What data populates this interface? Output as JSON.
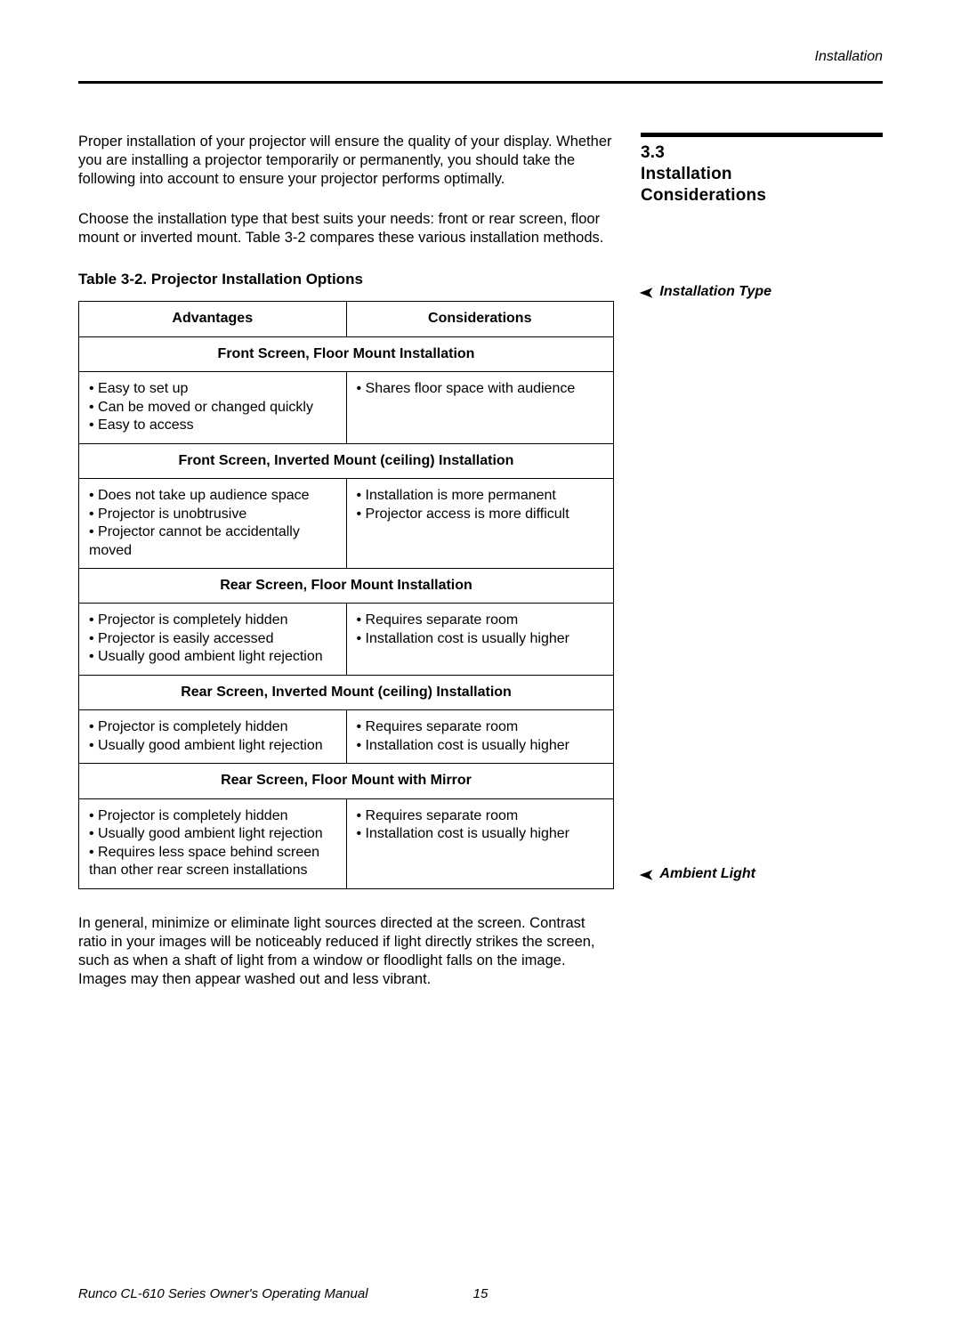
{
  "header": {
    "chapter": "Installation"
  },
  "section": {
    "number": "3.3",
    "title_l1": "Installation",
    "title_l2": "Considerations"
  },
  "sidenotes": {
    "installation_type": "Installation Type",
    "ambient_light": "Ambient Light",
    "arrow": "➤"
  },
  "body": {
    "intro": "Proper installation of your projector will ensure the quality of your display. Whether you are installing a projector temporarily or permanently, you should take the following into account to ensure your projector performs optimally.",
    "choose": "Choose the installation type that best suits your needs: front or rear screen, floor mount or inverted mount. Table 3-2 compares these various installation methods.",
    "table_caption": "Table 3-2. Projector Installation Options",
    "ambient": "In general, minimize or eliminate light sources directed at the screen. Contrast ratio in your images will be noticeably reduced if light directly strikes the screen, such as when a shaft of light from a window or floodlight falls on the image. Images may then appear washed out and less vibrant."
  },
  "table": {
    "columns": {
      "advantages": "Advantages",
      "considerations": "Considerations"
    },
    "col_widths": [
      "50%",
      "50%"
    ],
    "groups": [
      {
        "title": "Front Screen, Floor Mount Installation",
        "advantages": [
          "Easy to set up",
          "Can be moved or changed quickly",
          "Easy to access"
        ],
        "considerations": [
          "Shares floor space with audience"
        ]
      },
      {
        "title": "Front Screen, Inverted Mount (ceiling) Installation",
        "advantages": [
          "Does not take up audience space",
          "Projector is unobtrusive",
          "Projector cannot be accidentally moved"
        ],
        "considerations": [
          "Installation is more permanent",
          "Projector access is more difficult"
        ]
      },
      {
        "title": "Rear Screen, Floor Mount Installation",
        "advantages": [
          "Projector is completely hidden",
          "Projector is easily accessed",
          "Usually good ambient light rejection"
        ],
        "considerations": [
          "Requires separate room",
          "Installation cost is usually higher"
        ]
      },
      {
        "title": "Rear Screen, Inverted Mount (ceiling) Installation",
        "advantages": [
          "Projector is completely hidden",
          "Usually good ambient light rejection"
        ],
        "considerations": [
          "Requires separate room",
          "Installation cost is usually higher"
        ]
      },
      {
        "title": "Rear Screen, Floor Mount with Mirror",
        "advantages": [
          "Projector is completely hidden",
          "Usually good ambient light rejection",
          "Requires less space behind screen than other rear screen installations"
        ],
        "considerations": [
          "Requires separate room",
          "Installation cost is usually higher"
        ]
      }
    ]
  },
  "footer": {
    "title": "Runco CL-610 Series Owner's Operating Manual",
    "page": "15"
  }
}
